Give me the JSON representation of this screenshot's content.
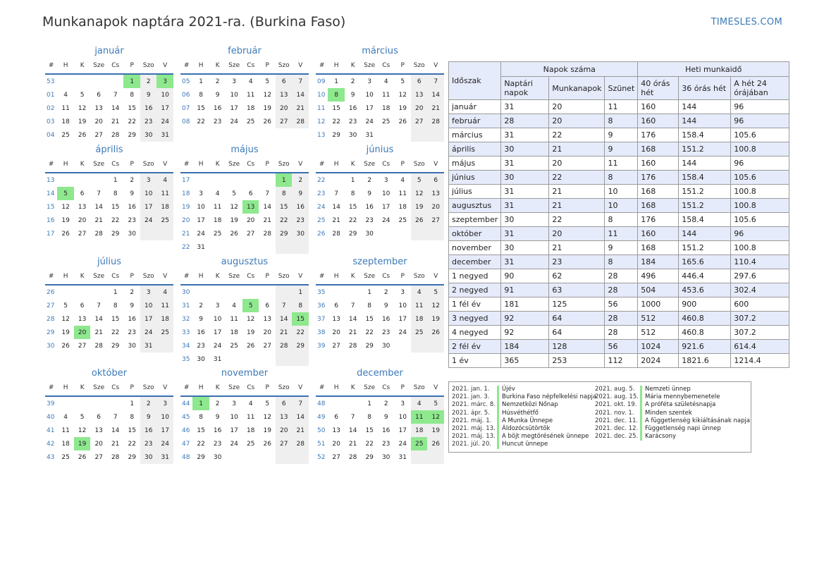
{
  "header": {
    "title": "Munkanapok naptára 2021-ra. (Burkina Faso)",
    "site": "TIMESLES.COM"
  },
  "weekday_headers": [
    "#",
    "H",
    "K",
    "Sze",
    "Cs",
    "P",
    "Szo",
    "V"
  ],
  "months": [
    {
      "name": "január",
      "offset": 4,
      "days": 31,
      "start_week": 53,
      "holidays": [
        1,
        3
      ]
    },
    {
      "name": "február",
      "offset": 0,
      "days": 28,
      "start_week": 5,
      "holidays": []
    },
    {
      "name": "március",
      "offset": 0,
      "days": 31,
      "start_week": 9,
      "holidays": [
        8
      ]
    },
    {
      "name": "április",
      "offset": 3,
      "days": 30,
      "start_week": 13,
      "holidays": [
        5
      ]
    },
    {
      "name": "május",
      "offset": 5,
      "days": 31,
      "start_week": 17,
      "holidays": [
        1,
        13
      ]
    },
    {
      "name": "június",
      "offset": 1,
      "days": 30,
      "start_week": 22,
      "holidays": []
    },
    {
      "name": "július",
      "offset": 3,
      "days": 31,
      "start_week": 26,
      "holidays": [
        20
      ]
    },
    {
      "name": "augusztus",
      "offset": 6,
      "days": 31,
      "start_week": 30,
      "holidays": [
        5,
        15
      ]
    },
    {
      "name": "szeptember",
      "offset": 2,
      "days": 30,
      "start_week": 35,
      "holidays": []
    },
    {
      "name": "október",
      "offset": 4,
      "days": 31,
      "start_week": 39,
      "holidays": [
        19
      ]
    },
    {
      "name": "november",
      "offset": 0,
      "days": 30,
      "start_week": 44,
      "holidays": [
        1
      ]
    },
    {
      "name": "december",
      "offset": 2,
      "days": 31,
      "start_week": 48,
      "holidays": [
        11,
        12,
        25
      ]
    }
  ],
  "stats": {
    "header_period": "Időszak",
    "header_days": "Napok száma",
    "header_weekly": "Heti munkaidő",
    "subheaders": [
      "Naptári napok",
      "Munkanapok",
      "Szünet",
      "40 órás hét",
      "36 órás hét",
      "A hét 24 órájában"
    ],
    "rows": [
      [
        "január",
        "31",
        "20",
        "11",
        "160",
        "144",
        "96"
      ],
      [
        "február",
        "28",
        "20",
        "8",
        "160",
        "144",
        "96"
      ],
      [
        "március",
        "31",
        "22",
        "9",
        "176",
        "158.4",
        "105.6"
      ],
      [
        "április",
        "30",
        "21",
        "9",
        "168",
        "151.2",
        "100.8"
      ],
      [
        "május",
        "31",
        "20",
        "11",
        "160",
        "144",
        "96"
      ],
      [
        "június",
        "30",
        "22",
        "8",
        "176",
        "158.4",
        "105.6"
      ],
      [
        "július",
        "31",
        "21",
        "10",
        "168",
        "151.2",
        "100.8"
      ],
      [
        "augusztus",
        "31",
        "21",
        "10",
        "168",
        "151.2",
        "100.8"
      ],
      [
        "szeptember",
        "30",
        "22",
        "8",
        "176",
        "158.4",
        "105.6"
      ],
      [
        "október",
        "31",
        "20",
        "11",
        "160",
        "144",
        "96"
      ],
      [
        "november",
        "30",
        "21",
        "9",
        "168",
        "151.2",
        "100.8"
      ],
      [
        "december",
        "31",
        "23",
        "8",
        "184",
        "165.6",
        "110.4"
      ],
      [
        "1 negyed",
        "90",
        "62",
        "28",
        "496",
        "446.4",
        "297.6"
      ],
      [
        "2 negyed",
        "91",
        "63",
        "28",
        "504",
        "453.6",
        "302.4"
      ],
      [
        "1 fél év",
        "181",
        "125",
        "56",
        "1000",
        "900",
        "600"
      ],
      [
        "3 negyed",
        "92",
        "64",
        "28",
        "512",
        "460.8",
        "307.2"
      ],
      [
        "4 negyed",
        "92",
        "64",
        "28",
        "512",
        "460.8",
        "307.2"
      ],
      [
        "2 fél év",
        "184",
        "128",
        "56",
        "1024",
        "921.6",
        "614.4"
      ],
      [
        "1 év",
        "365",
        "253",
        "112",
        "2024",
        "1821.6",
        "1214.4"
      ]
    ]
  },
  "holidays_list": {
    "left": [
      {
        "date": "2021. jan. 1.",
        "name": "Újév"
      },
      {
        "date": "2021. jan. 3.",
        "name": "Burkina Faso népfelkelési napja"
      },
      {
        "date": "2021. márc. 8.",
        "name": "Nemzetközi Nőnap"
      },
      {
        "date": "2021. ápr. 5.",
        "name": "Húsvéthétfő"
      },
      {
        "date": "2021. máj. 1.",
        "name": "A Munka Ünnepe"
      },
      {
        "date": "2021. máj. 13.",
        "name": "Áldozócsütörtök"
      },
      {
        "date": "2021. máj. 13.",
        "name": "A böjt megtörésének ünnepe"
      },
      {
        "date": "2021. júl. 20.",
        "name": "Huncut ünnepe"
      }
    ],
    "right": [
      {
        "date": "2021. aug. 5.",
        "name": "Nemzeti ünnep"
      },
      {
        "date": "2021. aug. 15.",
        "name": "Mária mennybemenetele"
      },
      {
        "date": "2021. okt. 19.",
        "name": "A próféta születésnapja"
      },
      {
        "date": "2021. nov. 1.",
        "name": "Minden szentek"
      },
      {
        "date": "2021. dec. 11.",
        "name": "A függetlenség kikiáltásának napja"
      },
      {
        "date": "2021. dec. 12.",
        "name": "Függetlenség napi ünnep"
      },
      {
        "date": "2021. dec. 25.",
        "name": "Karácsony"
      }
    ]
  },
  "colors": {
    "holiday": "#8ee88e",
    "weekend": "#efefef",
    "accent": "#3d7ab8",
    "row_alt": "#e6ebfb"
  }
}
